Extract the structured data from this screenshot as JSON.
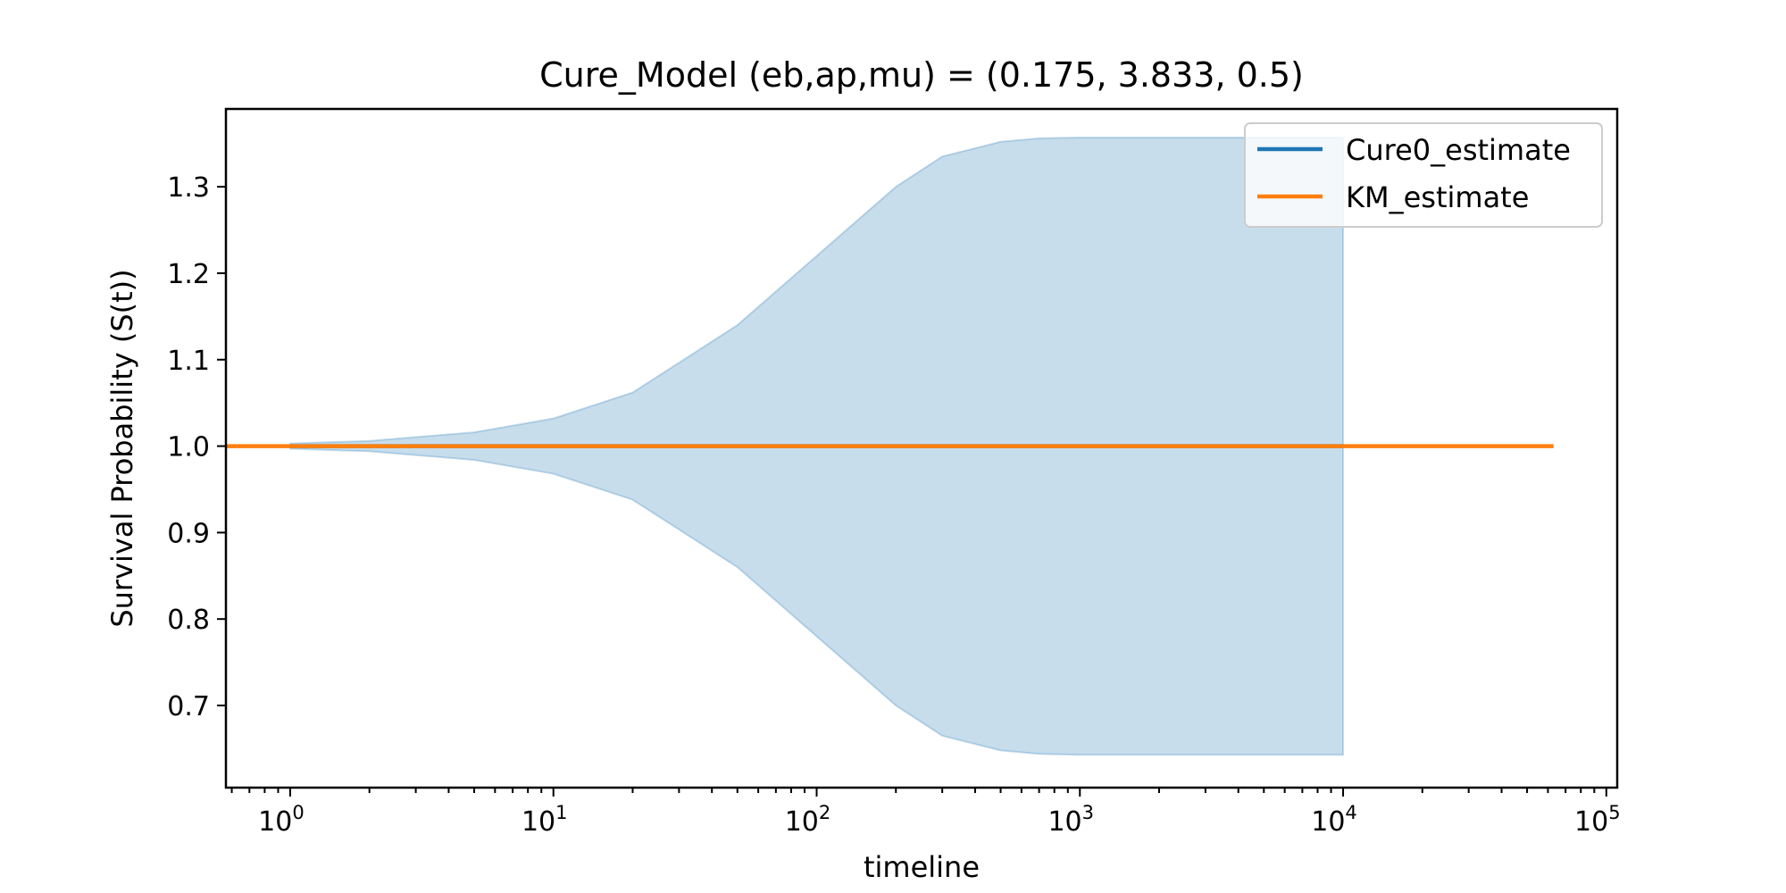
{
  "chart_data": {
    "type": "line",
    "title": "Cure_Model (eb,ap,mu) = (0.175, 3.833, 0.5)",
    "xlabel": "timeline",
    "ylabel": "Survival Probability (S(t))",
    "x_scale": "log",
    "xlim": [
      0.57,
      110000
    ],
    "ylim": [
      0.605,
      1.39
    ],
    "x_ticks": [
      {
        "value": 1,
        "base": "10",
        "exp": "0"
      },
      {
        "value": 10,
        "base": "10",
        "exp": "1"
      },
      {
        "value": 100,
        "base": "10",
        "exp": "2"
      },
      {
        "value": 1000,
        "base": "10",
        "exp": "3"
      },
      {
        "value": 10000,
        "base": "10",
        "exp": "4"
      },
      {
        "value": 100000,
        "base": "10",
        "exp": "5"
      }
    ],
    "y_ticks": [
      {
        "value": 0.7,
        "label": "0.7"
      },
      {
        "value": 0.8,
        "label": "0.8"
      },
      {
        "value": 0.9,
        "label": "0.9"
      },
      {
        "value": 1.0,
        "label": "1.0"
      },
      {
        "value": 1.1,
        "label": "1.1"
      },
      {
        "value": 1.2,
        "label": "1.2"
      },
      {
        "value": 1.3,
        "label": "1.3"
      }
    ],
    "grid": false,
    "legend_position": "top-right",
    "series": [
      {
        "name": "Cure0_estimate",
        "color": "#1f77b4",
        "x": [
          1,
          2,
          5,
          10,
          20,
          50,
          100,
          200,
          300,
          500,
          700,
          1000,
          2000,
          5000,
          10000
        ],
        "y": [
          1.0,
          1.0,
          1.0,
          1.0,
          1.0,
          1.0,
          1.0,
          1.0,
          1.0,
          1.0,
          1.0,
          1.0,
          1.0,
          1.0,
          1.0
        ],
        "ci_upper": [
          1.003,
          1.006,
          1.016,
          1.032,
          1.062,
          1.14,
          1.22,
          1.3,
          1.335,
          1.352,
          1.356,
          1.357,
          1.357,
          1.357,
          1.357
        ],
        "ci_lower": [
          0.997,
          0.994,
          0.984,
          0.968,
          0.938,
          0.86,
          0.78,
          0.7,
          0.665,
          0.648,
          0.644,
          0.643,
          0.643,
          0.643,
          0.643
        ],
        "ci_color": "#1f77b4"
      },
      {
        "name": "KM_estimate",
        "color": "#ff7f0e",
        "x": [
          0.57,
          1,
          10,
          100,
          1000,
          10000,
          63000
        ],
        "y": [
          1.0,
          1.0,
          1.0,
          1.0,
          1.0,
          1.0,
          1.0
        ]
      }
    ]
  }
}
